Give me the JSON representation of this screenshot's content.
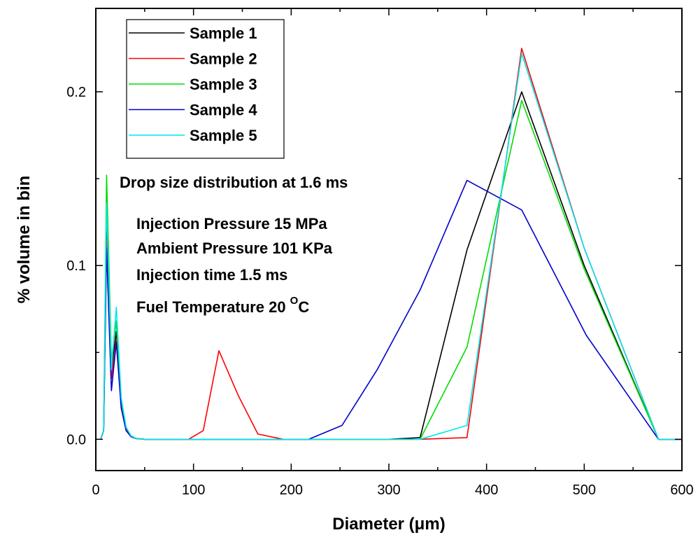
{
  "chart_data": {
    "type": "line",
    "title": "",
    "xlabel": "Diameter (μm)",
    "ylabel": "% volume in bin",
    "xlim": [
      0,
      600
    ],
    "ylim": [
      -0.018,
      0.248
    ],
    "xticks": [
      0,
      100,
      200,
      300,
      400,
      500,
      600
    ],
    "xtick_labels": [
      "0",
      "100",
      "200",
      "300",
      "400",
      "500",
      "600"
    ],
    "yticks": [
      0.0,
      0.1,
      0.2
    ],
    "ytick_labels": [
      "0.0",
      "0.1",
      "0.2"
    ],
    "grid": false,
    "legend_position": "top-left",
    "annotations": {
      "heading": "Drop size distribution at 1.6 ms",
      "lines": [
        "Injection Pressure 15 MPa",
        "Ambient Pressure 101 KPa",
        "Injection time 1.5 ms"
      ],
      "temperature": {
        "prefix": "Fuel Temperature 20 ",
        "superscript": "O",
        "suffix": "C"
      }
    },
    "series": [
      {
        "name": "Sample 1",
        "color": "#000000",
        "x": [
          5,
          8,
          11,
          16,
          21,
          26,
          31,
          36,
          41,
          50,
          100,
          200,
          300,
          332,
          380,
          436,
          500,
          576,
          600
        ],
        "y": [
          0,
          0.005,
          0.13,
          0.04,
          0.062,
          0.02,
          0.006,
          0.002,
          0.0005,
          0,
          0,
          0,
          0,
          0.001,
          0.109,
          0.2,
          0.1,
          0,
          0
        ]
      },
      {
        "name": "Sample 2",
        "color": "#ff0000",
        "x": [
          5,
          8,
          11,
          16,
          21,
          26,
          31,
          36,
          41,
          50,
          95,
          110,
          126,
          146,
          166,
          192,
          250,
          300,
          332,
          380,
          436,
          500,
          576,
          600
        ],
        "y": [
          0,
          0.005,
          0.115,
          0.035,
          0.058,
          0.02,
          0.006,
          0.002,
          0.0005,
          0,
          0,
          0.005,
          0.051,
          0.025,
          0.003,
          0,
          0,
          0,
          0,
          0.001,
          0.225,
          0.11,
          0,
          0
        ]
      },
      {
        "name": "Sample 3",
        "color": "#00dd00",
        "x": [
          5,
          8,
          11,
          16,
          21,
          26,
          31,
          36,
          41,
          50,
          100,
          200,
          300,
          332,
          380,
          436,
          500,
          576,
          600
        ],
        "y": [
          0,
          0.005,
          0.152,
          0.045,
          0.068,
          0.022,
          0.007,
          0.002,
          0.0005,
          0,
          0,
          0,
          0,
          0,
          0.053,
          0.195,
          0.098,
          0,
          0
        ]
      },
      {
        "name": "Sample 4",
        "color": "#0000cc",
        "x": [
          5,
          8,
          11,
          16,
          21,
          26,
          31,
          36,
          41,
          50,
          100,
          218,
          252,
          288,
          332,
          380,
          436,
          502,
          576,
          600
        ],
        "y": [
          0,
          0.005,
          0.11,
          0.028,
          0.056,
          0.018,
          0.005,
          0.0015,
          0.0004,
          0,
          0,
          0,
          0.008,
          0.04,
          0.086,
          0.149,
          0.132,
          0.06,
          0,
          0
        ]
      },
      {
        "name": "Sample 5",
        "color": "#00e5ee",
        "x": [
          5,
          8,
          11,
          16,
          21,
          26,
          31,
          36,
          41,
          50,
          100,
          200,
          300,
          332,
          380,
          436,
          500,
          576,
          600
        ],
        "y": [
          0,
          0.005,
          0.136,
          0.04,
          0.076,
          0.024,
          0.007,
          0.002,
          0.0005,
          0,
          0,
          0,
          0,
          0,
          0.008,
          0.222,
          0.11,
          0,
          0
        ]
      }
    ]
  }
}
